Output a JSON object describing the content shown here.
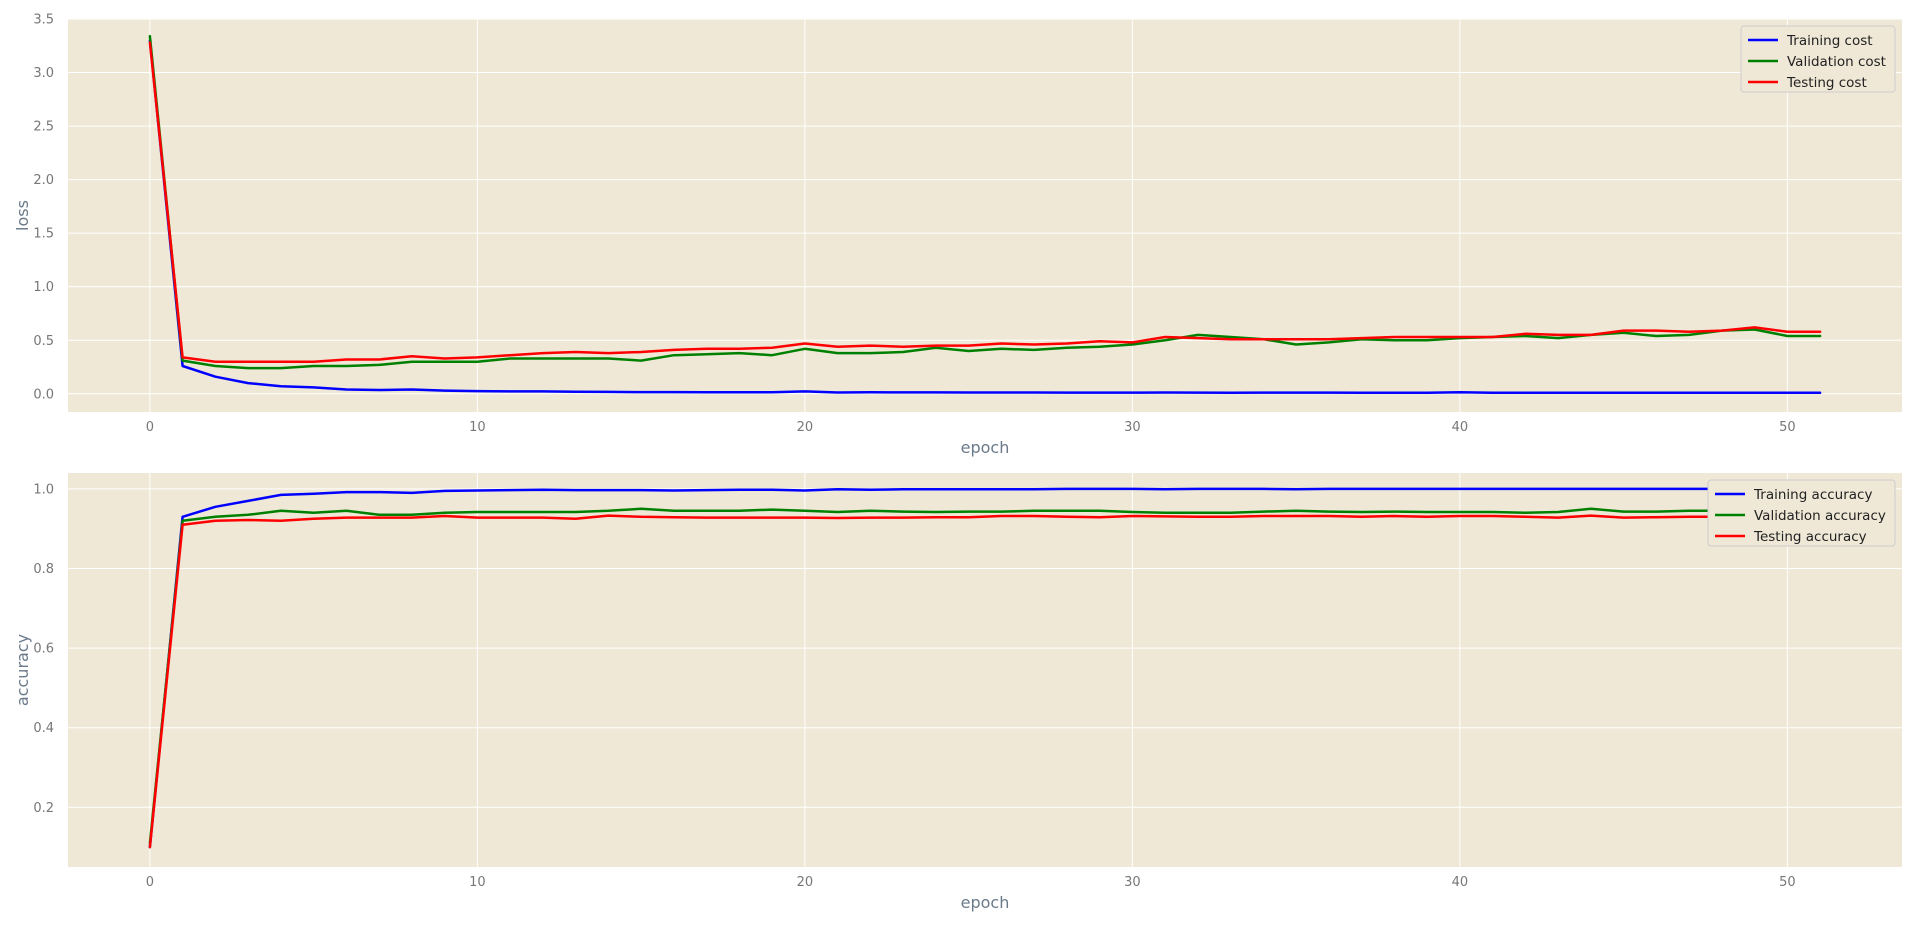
{
  "chart_data": [
    {
      "type": "line",
      "xlabel": "epoch",
      "ylabel": "loss",
      "xlim": [
        -2.5,
        53.5
      ],
      "ylim": [
        -0.17,
        3.5
      ],
      "xticks": [
        0,
        10,
        20,
        30,
        40,
        50
      ],
      "yticks": [
        0.0,
        0.5,
        1.0,
        1.5,
        2.0,
        2.5,
        3.0,
        3.5
      ],
      "ytick_labels": [
        "0.0",
        "0.5",
        "1.0",
        "1.5",
        "2.0",
        "2.5",
        "3.0",
        "3.5"
      ],
      "grid": true,
      "legend": "top-right",
      "series": [
        {
          "name": "Training cost",
          "color": "#0000ff",
          "values": [
            3.3,
            0.26,
            0.16,
            0.1,
            0.07,
            0.06,
            0.04,
            0.035,
            0.04,
            0.03,
            0.025,
            0.022,
            0.022,
            0.02,
            0.018,
            0.016,
            0.016,
            0.015,
            0.014,
            0.014,
            0.022,
            0.012,
            0.014,
            0.013,
            0.013,
            0.012,
            0.012,
            0.012,
            0.011,
            0.011,
            0.011,
            0.012,
            0.011,
            0.01,
            0.011,
            0.011,
            0.011,
            0.01,
            0.01,
            0.01,
            0.015,
            0.01,
            0.01,
            0.01,
            0.01,
            0.01,
            0.01,
            0.01,
            0.01,
            0.01,
            0.01,
            0.01
          ]
        },
        {
          "name": "Validation cost",
          "color": "#008000",
          "values": [
            3.34,
            0.31,
            0.26,
            0.24,
            0.24,
            0.26,
            0.26,
            0.27,
            0.3,
            0.3,
            0.3,
            0.33,
            0.33,
            0.33,
            0.33,
            0.31,
            0.36,
            0.37,
            0.38,
            0.36,
            0.42,
            0.38,
            0.38,
            0.39,
            0.43,
            0.4,
            0.42,
            0.41,
            0.43,
            0.44,
            0.46,
            0.5,
            0.55,
            0.53,
            0.51,
            0.46,
            0.48,
            0.51,
            0.5,
            0.5,
            0.52,
            0.53,
            0.54,
            0.52,
            0.55,
            0.57,
            0.54,
            0.55,
            0.59,
            0.6,
            0.54,
            0.54
          ]
        },
        {
          "name": "Testing cost",
          "color": "#ff0000",
          "values": [
            3.28,
            0.34,
            0.3,
            0.3,
            0.3,
            0.3,
            0.32,
            0.32,
            0.35,
            0.33,
            0.34,
            0.36,
            0.38,
            0.39,
            0.38,
            0.39,
            0.41,
            0.42,
            0.42,
            0.43,
            0.47,
            0.44,
            0.45,
            0.44,
            0.45,
            0.45,
            0.47,
            0.46,
            0.47,
            0.49,
            0.48,
            0.53,
            0.52,
            0.51,
            0.51,
            0.51,
            0.51,
            0.52,
            0.53,
            0.53,
            0.53,
            0.53,
            0.56,
            0.55,
            0.55,
            0.59,
            0.59,
            0.58,
            0.59,
            0.62,
            0.58,
            0.58
          ]
        }
      ]
    },
    {
      "type": "line",
      "xlabel": "epoch",
      "ylabel": "accuracy",
      "xlim": [
        -2.5,
        53.5
      ],
      "ylim": [
        0.05,
        1.04
      ],
      "xticks": [
        0,
        10,
        20,
        30,
        40,
        50
      ],
      "yticks": [
        0.2,
        0.4,
        0.6,
        0.8,
        1.0
      ],
      "ytick_labels": [
        "0.2",
        "0.4",
        "0.6",
        "0.8",
        "1.0"
      ],
      "grid": true,
      "legend": "top-right",
      "series": [
        {
          "name": "Training accuracy",
          "color": "#0000ff",
          "values": [
            0.1,
            0.93,
            0.955,
            0.97,
            0.985,
            0.988,
            0.992,
            0.992,
            0.99,
            0.995,
            0.996,
            0.997,
            0.998,
            0.997,
            0.997,
            0.997,
            0.996,
            0.997,
            0.998,
            0.998,
            0.996,
            0.999,
            0.998,
            0.999,
            0.999,
            0.999,
            0.999,
            0.999,
            1.0,
            1.0,
            1.0,
            0.999,
            1.0,
            1.0,
            1.0,
            0.999,
            1.0,
            1.0,
            1.0,
            1.0,
            1.0,
            1.0,
            1.0,
            1.0,
            1.0,
            1.0,
            1.0,
            1.0,
            1.0,
            1.0,
            1.0,
            1.0
          ]
        },
        {
          "name": "Validation accuracy",
          "color": "#008000",
          "values": [
            0.11,
            0.92,
            0.93,
            0.935,
            0.945,
            0.94,
            0.945,
            0.935,
            0.935,
            0.94,
            0.942,
            0.942,
            0.942,
            0.942,
            0.945,
            0.95,
            0.945,
            0.945,
            0.945,
            0.948,
            0.945,
            0.942,
            0.945,
            0.943,
            0.942,
            0.943,
            0.943,
            0.945,
            0.945,
            0.945,
            0.942,
            0.94,
            0.94,
            0.94,
            0.943,
            0.945,
            0.943,
            0.942,
            0.943,
            0.942,
            0.942,
            0.942,
            0.94,
            0.942,
            0.95,
            0.943,
            0.943,
            0.945,
            0.945,
            0.945,
            0.945,
            0.945
          ]
        },
        {
          "name": "Testing accuracy",
          "color": "#ff0000",
          "values": [
            0.1,
            0.91,
            0.92,
            0.922,
            0.92,
            0.925,
            0.928,
            0.928,
            0.928,
            0.932,
            0.928,
            0.928,
            0.928,
            0.925,
            0.933,
            0.93,
            0.929,
            0.928,
            0.928,
            0.928,
            0.928,
            0.927,
            0.928,
            0.928,
            0.929,
            0.929,
            0.932,
            0.932,
            0.93,
            0.929,
            0.932,
            0.931,
            0.93,
            0.93,
            0.932,
            0.932,
            0.932,
            0.93,
            0.932,
            0.93,
            0.932,
            0.932,
            0.93,
            0.928,
            0.933,
            0.928,
            0.929,
            0.93,
            0.93,
            0.93,
            0.93,
            0.93
          ]
        }
      ]
    }
  ]
}
